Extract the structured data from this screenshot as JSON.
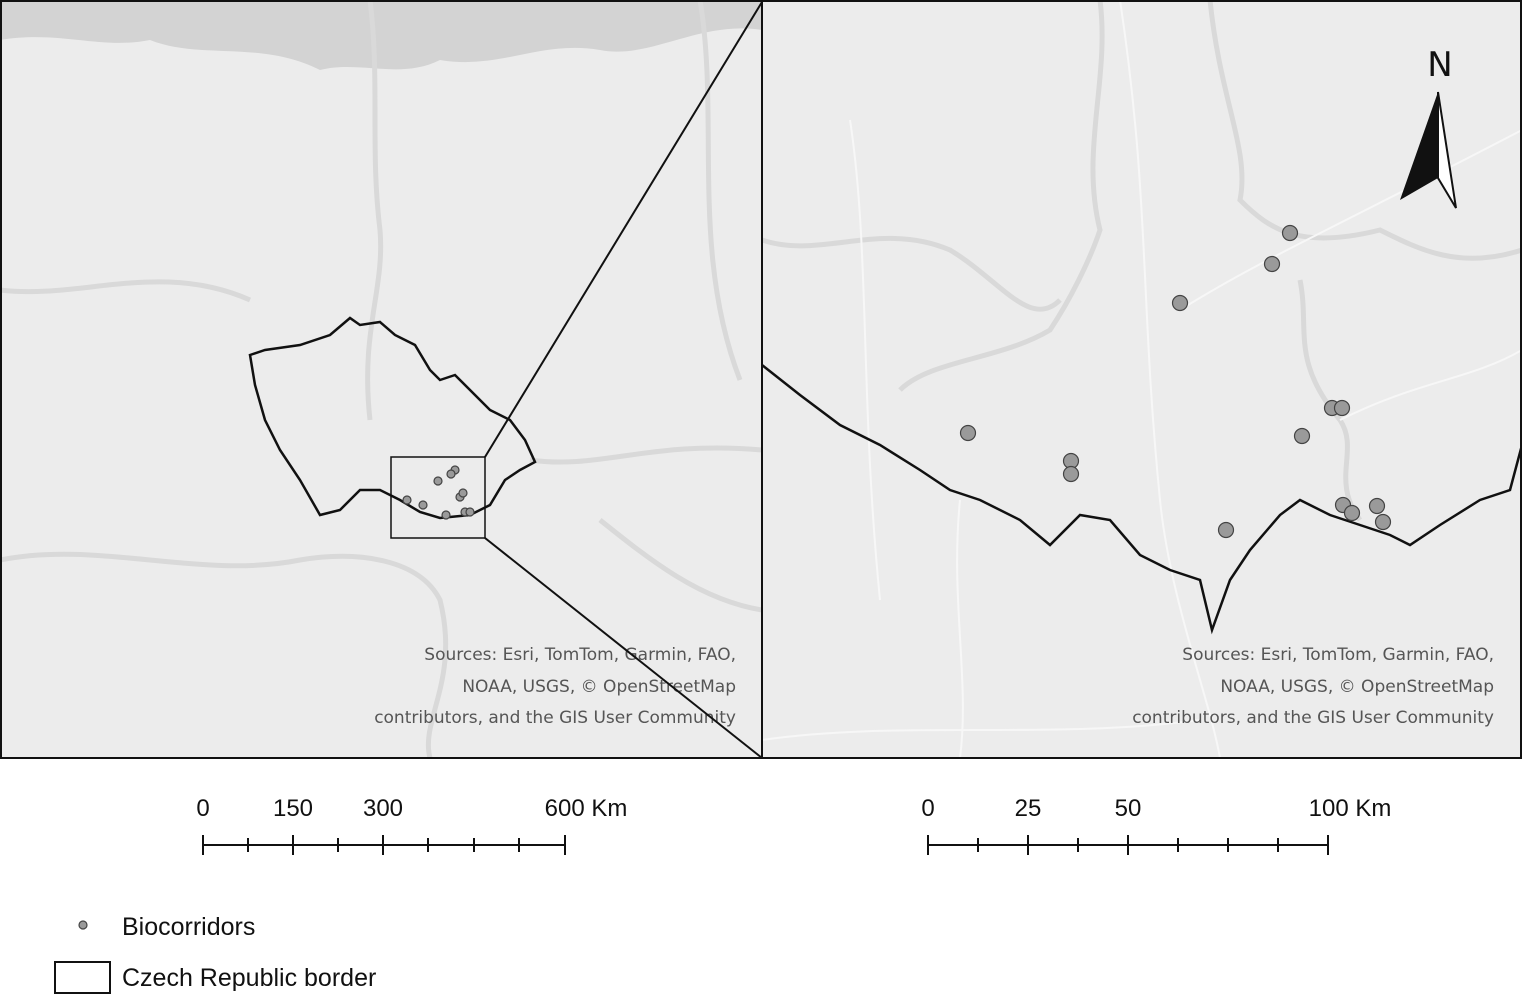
{
  "left_map": {
    "attribution": [
      "Sources: Esri, TomTom, Garmin, FAO,",
      "NOAA, USGS, © OpenStreetMap",
      "contributors, and the GIS User Community"
    ],
    "scale_bar": {
      "labels": [
        "0",
        "150",
        "300",
        "600 Km"
      ]
    }
  },
  "right_map": {
    "north_arrow": "N",
    "attribution": [
      "Sources: Esri, TomTom, Garmin, FAO,",
      "NOAA, USGS, © OpenStreetMap",
      "contributors, and the GIS User Community"
    ],
    "scale_bar": {
      "labels": [
        "0",
        "25",
        "50",
        "100 Km"
      ]
    }
  },
  "legend": {
    "items": [
      "Biocorridors",
      "Czech Republic border"
    ]
  }
}
